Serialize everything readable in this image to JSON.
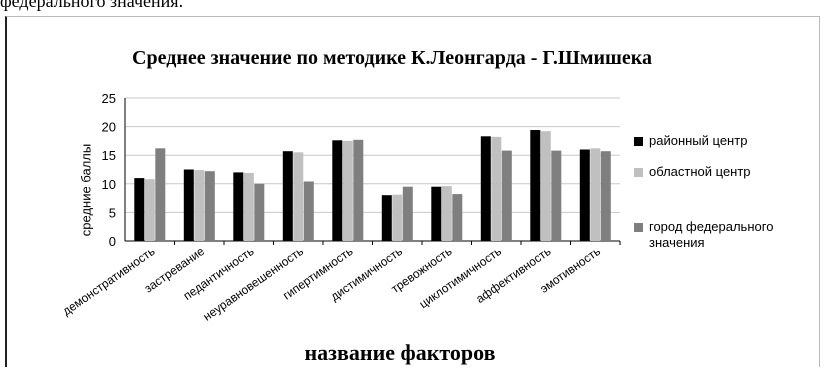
{
  "document": {
    "top_text": "федерального значения."
  },
  "chart_data": {
    "type": "bar",
    "title": "Среднее значение по методике К.Леонгарда - Г.Шмишека",
    "xlabel": "название факторов",
    "ylabel": "средние баллы",
    "ylim": [
      0,
      25
    ],
    "yticks": [
      0,
      5,
      10,
      15,
      20,
      25
    ],
    "grid": true,
    "legend_position": "right",
    "categories": [
      "демонстративность",
      "застревание",
      "педантичность",
      "неуравновешенность",
      "гипертимность",
      "дистимичность",
      "тревожность",
      "циклотимичность",
      "аффективность",
      "эмотивность"
    ],
    "series": [
      {
        "name": "районный центр",
        "color": "#000000",
        "values": [
          11,
          12.5,
          12,
          15.7,
          17.6,
          8,
          9.5,
          18.3,
          19.4,
          16
        ]
      },
      {
        "name": "областной центр",
        "color": "#c0c0c0",
        "values": [
          10.8,
          12.4,
          11.9,
          15.5,
          17.5,
          8.1,
          9.6,
          18.2,
          19.2,
          16.2
        ]
      },
      {
        "name": "город федерального значения",
        "color": "#7f7f7f",
        "values": [
          16.2,
          12.2,
          10,
          10.4,
          17.7,
          9.5,
          8.2,
          15.8,
          15.8,
          15.7
        ]
      }
    ]
  }
}
